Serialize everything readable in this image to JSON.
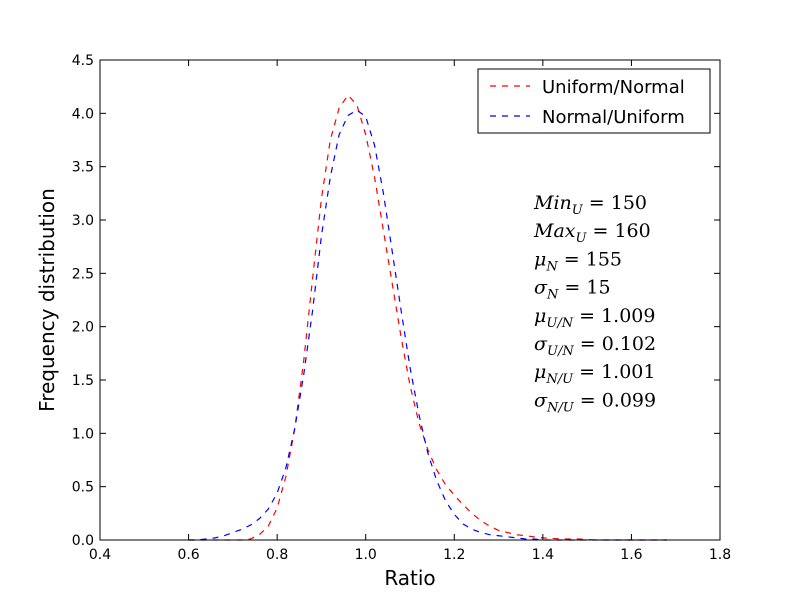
{
  "chart_data": {
    "type": "line",
    "xlabel": "Ratio",
    "ylabel": "Frequency distribution",
    "xlim": [
      0.4,
      1.8
    ],
    "ylim": [
      0.0,
      4.5
    ],
    "xticks": [
      "0.4",
      "0.6",
      "0.8",
      "1.0",
      "1.2",
      "1.4",
      "1.6",
      "1.8"
    ],
    "yticks": [
      "0.0",
      "0.5",
      "1.0",
      "1.5",
      "2.0",
      "2.5",
      "3.0",
      "3.5",
      "4.0",
      "4.5"
    ],
    "grid": false,
    "legend_position": "top-right",
    "series": [
      {
        "name": "Uniform/Normal",
        "color": "#ff0000",
        "line_style": "dashed",
        "x": [
          0.6,
          0.62,
          0.64,
          0.66,
          0.68,
          0.7,
          0.72,
          0.74,
          0.76,
          0.78,
          0.8,
          0.82,
          0.84,
          0.86,
          0.88,
          0.9,
          0.92,
          0.94,
          0.96,
          0.98,
          1.0,
          1.02,
          1.04,
          1.06,
          1.08,
          1.1,
          1.12,
          1.14,
          1.16,
          1.18,
          1.2,
          1.22,
          1.24,
          1.26,
          1.28,
          1.3,
          1.32,
          1.34,
          1.36,
          1.38,
          1.4,
          1.44,
          1.48,
          1.52,
          1.56,
          1.6,
          1.64,
          1.68
        ],
        "y": [
          0.0,
          0.0,
          0.0,
          0.0,
          0.0,
          0.0,
          0.0,
          0.01,
          0.05,
          0.13,
          0.3,
          0.6,
          1.05,
          1.68,
          2.45,
          3.2,
          3.75,
          4.05,
          4.17,
          4.08,
          3.8,
          3.4,
          2.9,
          2.4,
          1.9,
          1.45,
          1.1,
          0.85,
          0.66,
          0.52,
          0.42,
          0.33,
          0.25,
          0.18,
          0.13,
          0.09,
          0.07,
          0.05,
          0.04,
          0.03,
          0.02,
          0.01,
          0.01,
          0.0,
          0.0,
          0.0,
          0.0,
          0.0
        ]
      },
      {
        "name": "Normal/Uniform",
        "color": "#0000ff",
        "line_style": "dashed",
        "x": [
          0.6,
          0.62,
          0.64,
          0.66,
          0.68,
          0.7,
          0.72,
          0.74,
          0.76,
          0.78,
          0.8,
          0.82,
          0.84,
          0.86,
          0.88,
          0.9,
          0.92,
          0.94,
          0.96,
          0.98,
          1.0,
          1.02,
          1.04,
          1.06,
          1.08,
          1.1,
          1.12,
          1.14,
          1.16,
          1.18,
          1.2,
          1.22,
          1.24,
          1.26,
          1.28,
          1.3,
          1.32,
          1.34,
          1.36,
          1.38,
          1.4,
          1.44,
          1.48,
          1.52,
          1.56,
          1.6,
          1.64,
          1.68
        ],
        "y": [
          0.0,
          0.0,
          0.01,
          0.02,
          0.04,
          0.07,
          0.1,
          0.14,
          0.2,
          0.29,
          0.44,
          0.68,
          1.05,
          1.55,
          2.15,
          2.85,
          3.4,
          3.8,
          3.98,
          4.03,
          3.97,
          3.7,
          3.25,
          2.7,
          2.15,
          1.62,
          1.18,
          0.82,
          0.56,
          0.37,
          0.24,
          0.15,
          0.1,
          0.07,
          0.05,
          0.04,
          0.03,
          0.02,
          0.01,
          0.01,
          0.0,
          0.0,
          0.0,
          0.0,
          0.0,
          0.0,
          0.0,
          0.0
        ]
      }
    ],
    "annotations": [
      {
        "base": "Min",
        "sub": "U",
        "rest": " = 150"
      },
      {
        "base": "Max",
        "sub": "U",
        "rest": " = 160"
      },
      {
        "base": "μ",
        "sub": "N",
        "rest": " = 155"
      },
      {
        "base": "σ",
        "sub": "N",
        "rest": " = 15"
      },
      {
        "base": "μ",
        "sub": "U/N",
        "rest": " = 1.009"
      },
      {
        "base": "σ",
        "sub": "U/N",
        "rest": " = 0.102"
      },
      {
        "base": "μ",
        "sub": "N/U",
        "rest": " = 1.001"
      },
      {
        "base": "σ",
        "sub": "N/U",
        "rest": " = 0.099"
      }
    ]
  }
}
